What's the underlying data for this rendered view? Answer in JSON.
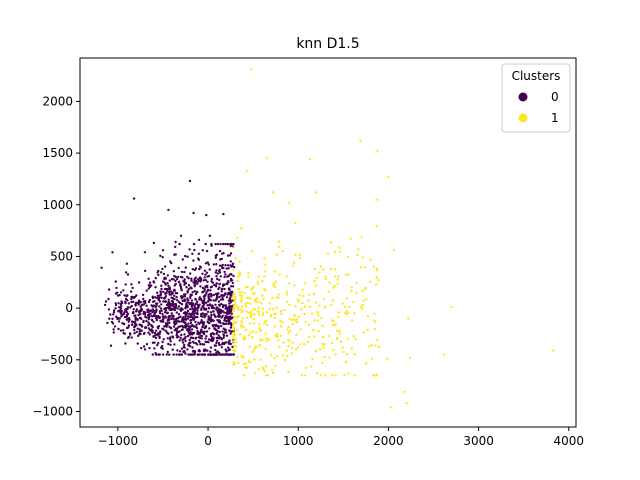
{
  "chart_data": {
    "type": "scatter",
    "title": "knn D1.5",
    "xlabel": "",
    "ylabel": "",
    "xlim": [
      -1420,
      4080
    ],
    "ylim": [
      -1150,
      2420
    ],
    "xticks": [
      -1000,
      0,
      1000,
      2000,
      3000,
      4000
    ],
    "yticks": [
      -1000,
      -500,
      0,
      500,
      1000,
      1500,
      2000
    ],
    "xtick_labels": [
      "−1000",
      "0",
      "1000",
      "2000",
      "3000",
      "4000"
    ],
    "ytick_labels": [
      "−1000",
      "−500",
      "0",
      "500",
      "1000",
      "1500",
      "2000"
    ],
    "grid": false,
    "legend": {
      "title": "Clusters",
      "placement": "top-right",
      "entries": [
        {
          "label": "0",
          "color": "#440154"
        },
        {
          "label": "1",
          "color": "#fde725"
        }
      ]
    },
    "series": [
      {
        "name": "0",
        "color": "#440154",
        "generated_points": {
          "count": 1400,
          "x_range": [
            -1150,
            290
          ],
          "y_range": [
            -450,
            620
          ],
          "y_center": -50
        },
        "points": [
          [
            -820,
            1060
          ],
          [
            -200,
            1230
          ],
          [
            -440,
            950
          ],
          [
            -160,
            920
          ],
          [
            -20,
            900
          ],
          [
            170,
            910
          ],
          [
            -500,
            560
          ],
          [
            -1060,
            540
          ],
          [
            -1180,
            390
          ],
          [
            -900,
            430
          ],
          [
            -700,
            540
          ],
          [
            -600,
            630
          ],
          [
            -300,
            700
          ],
          [
            -100,
            660
          ],
          [
            20,
            700
          ],
          [
            -360,
            640
          ]
        ]
      },
      {
        "name": "1",
        "color": "#fde725",
        "generated_points": {
          "count": 480,
          "x_range": [
            280,
            1900
          ],
          "y_range": [
            -650,
            880
          ],
          "y_center": -100
        },
        "points": [
          [
            480,
            2310
          ],
          [
            1690,
            1620
          ],
          [
            1880,
            1520
          ],
          [
            1130,
            1440
          ],
          [
            650,
            1450
          ],
          [
            2000,
            1270
          ],
          [
            1880,
            1050
          ],
          [
            3830,
            -410
          ],
          [
            2700,
            10
          ],
          [
            2620,
            -450
          ],
          [
            2240,
            -480
          ],
          [
            2200,
            -920
          ],
          [
            2180,
            -810
          ],
          [
            2030,
            -960
          ],
          [
            1990,
            -490
          ],
          [
            1870,
            300
          ],
          [
            2220,
            -100
          ],
          [
            2060,
            560
          ],
          [
            1800,
            470
          ],
          [
            720,
            1120
          ],
          [
            1200,
            1120
          ],
          [
            900,
            1020
          ],
          [
            430,
            1330
          ]
        ]
      }
    ]
  }
}
